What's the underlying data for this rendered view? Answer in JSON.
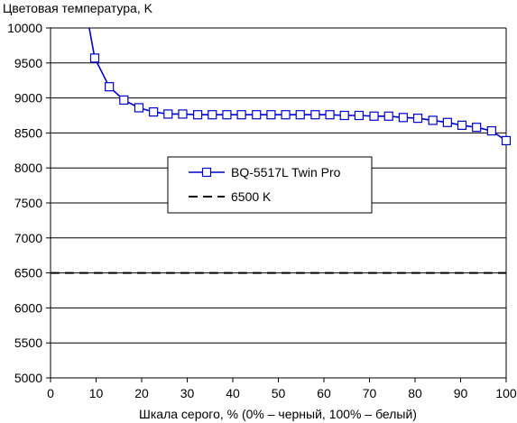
{
  "chart_data": {
    "type": "line",
    "title": "",
    "ylabel": "Цветовая температура, K",
    "xlabel": "Шкала серого, % (0% – черный, 100% – белый)",
    "xlim": [
      0,
      100
    ],
    "ylim": [
      5000,
      10000
    ],
    "xticks": [
      0,
      10,
      20,
      30,
      40,
      50,
      60,
      70,
      80,
      90,
      100
    ],
    "yticks": [
      5000,
      5500,
      6000,
      6500,
      7000,
      7500,
      8000,
      8500,
      9000,
      9500,
      10000
    ],
    "grid": "horizontal",
    "legend_placement": "center-left",
    "series": [
      {
        "name": "BQ-5517L Twin Pro",
        "color": "#0000cc",
        "style": "solid",
        "marker": "square-open",
        "x": [
          9.7,
          12.9,
          16.1,
          19.4,
          22.6,
          25.8,
          29.0,
          32.3,
          35.5,
          38.7,
          41.9,
          45.2,
          48.4,
          51.6,
          54.8,
          58.1,
          61.3,
          64.5,
          67.7,
          71.0,
          74.2,
          77.4,
          80.6,
          83.9,
          87.1,
          90.3,
          93.5,
          96.8,
          100
        ],
        "y": [
          9570,
          9160,
          8970,
          8860,
          8800,
          8770,
          8770,
          8760,
          8760,
          8760,
          8760,
          8760,
          8760,
          8760,
          8760,
          8760,
          8760,
          8750,
          8750,
          8740,
          8740,
          8720,
          8710,
          8680,
          8650,
          8610,
          8580,
          8530,
          8390
        ],
        "lead_in": {
          "x": [
            8.5,
            9.7
          ],
          "y": [
            10000,
            9570
          ]
        }
      },
      {
        "name": "6500 K",
        "color": "#000000",
        "style": "dashed",
        "marker": "none",
        "x": [
          0,
          100
        ],
        "y": [
          6500,
          6500
        ]
      }
    ]
  }
}
